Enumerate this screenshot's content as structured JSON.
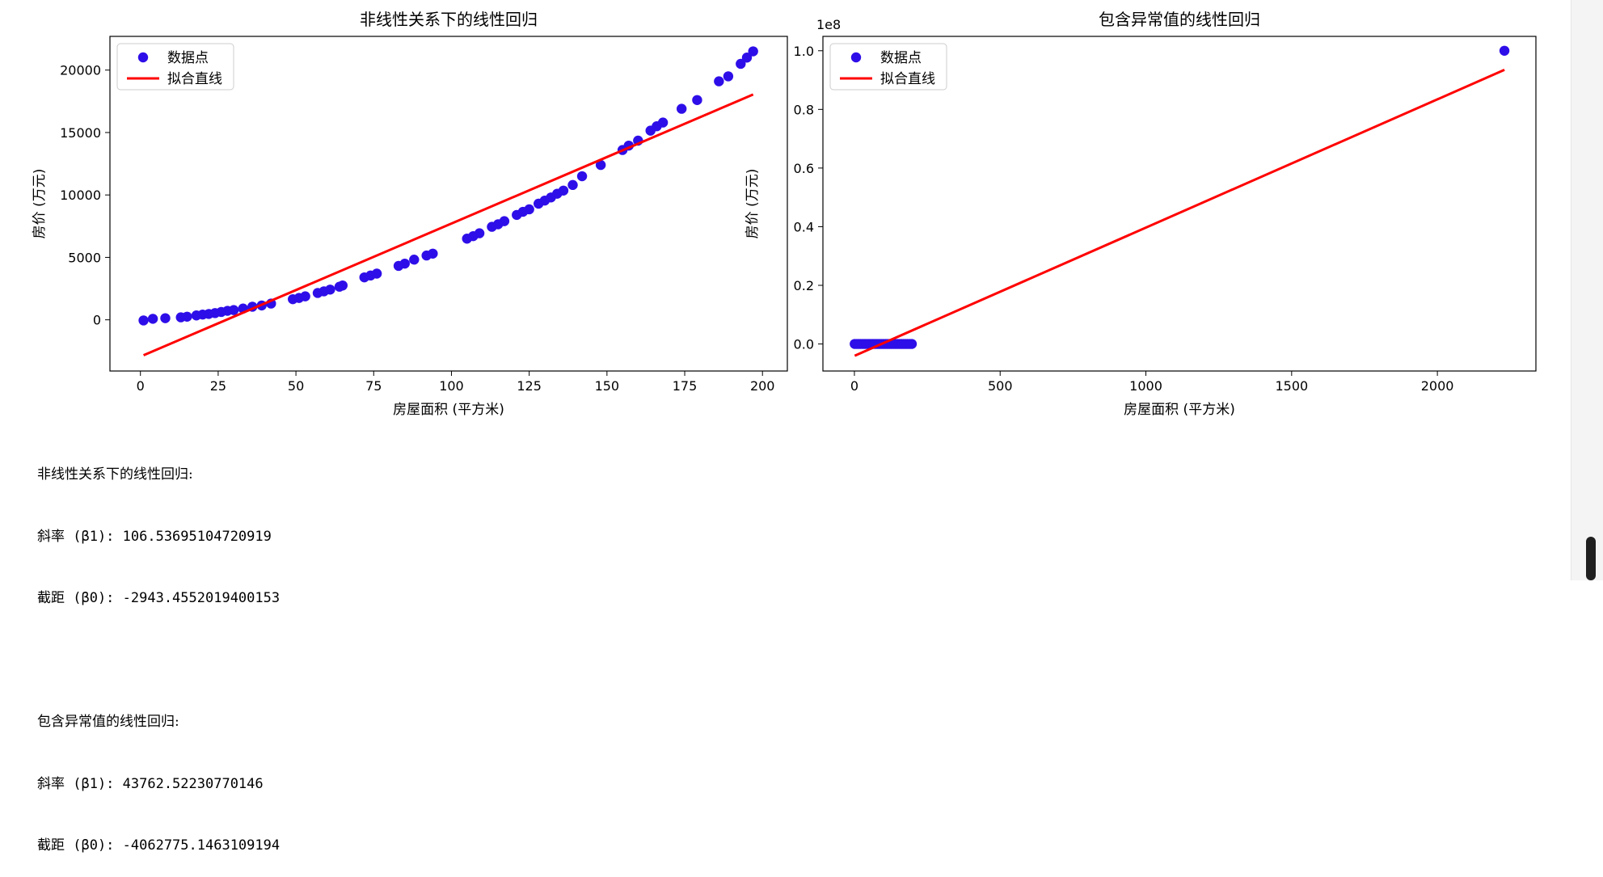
{
  "chart_data": [
    {
      "type": "scatter",
      "title": "非线性关系下的线性回归",
      "xlabel": "房屋面积 (平方米)",
      "ylabel": "房价 (万元)",
      "xlim": [
        -9.8,
        208
      ],
      "ylim": [
        -4100,
        22700
      ],
      "xticks": [
        0,
        25,
        50,
        75,
        100,
        125,
        150,
        175,
        200
      ],
      "yticks": [
        0,
        5000,
        10000,
        15000,
        20000
      ],
      "offset_text": "",
      "legend_position": "top-left",
      "series": [
        {
          "name": "数据点",
          "kind": "points",
          "color": "#2e0ee8",
          "x": [
            1,
            4,
            8,
            13,
            15,
            18,
            20,
            22,
            24,
            26,
            28,
            30,
            33,
            36,
            39,
            42,
            49,
            51,
            53,
            57,
            59,
            61,
            64,
            65,
            72,
            74,
            76,
            83,
            85,
            88,
            92,
            94,
            105,
            107,
            109,
            113,
            115,
            117,
            121,
            123,
            125,
            128,
            130,
            132,
            134,
            136,
            139,
            142,
            148,
            155,
            157,
            160,
            164,
            166,
            168,
            174,
            179,
            186,
            189,
            193,
            195,
            197
          ],
          "y": [
            -50,
            80,
            130,
            200,
            250,
            350,
            420,
            470,
            540,
            630,
            720,
            780,
            900,
            1050,
            1150,
            1300,
            1650,
            1750,
            1880,
            2150,
            2280,
            2420,
            2650,
            2750,
            3400,
            3550,
            3700,
            4320,
            4500,
            4820,
            5150,
            5300,
            6500,
            6700,
            6930,
            7450,
            7650,
            7900,
            8400,
            8650,
            8850,
            9300,
            9550,
            9800,
            10100,
            10350,
            10800,
            11500,
            12400,
            13600,
            13950,
            14350,
            15150,
            15500,
            15800,
            16900,
            17600,
            19100,
            19500,
            20500,
            21000,
            21500
          ]
        },
        {
          "name": "拟合直线",
          "kind": "line",
          "color": "#ff0000",
          "x": [
            1,
            197
          ],
          "y": [
            -2837,
            18043
          ]
        }
      ]
    },
    {
      "type": "scatter",
      "title": "包含异常值的线性回归",
      "xlabel": "房屋面积 (平方米)",
      "ylabel": "房价 (万元)",
      "xlim": [
        -108,
        2338
      ],
      "ylim": [
        -0.0922,
        1.049
      ],
      "xticks": [
        0,
        500,
        1000,
        1500,
        2000
      ],
      "yticks": [
        0.0,
        0.2,
        0.4,
        0.6,
        0.8,
        1.0
      ],
      "offset_text": "1e8",
      "legend_position": "top-left",
      "series": [
        {
          "name": "数据点",
          "kind": "points",
          "color": "#2e0ee8",
          "x": [
            1,
            8,
            15,
            22,
            29,
            36,
            43,
            50,
            57,
            64,
            71,
            78,
            85,
            92,
            99,
            106,
            113,
            120,
            127,
            134,
            141,
            148,
            155,
            162,
            169,
            176,
            183,
            190,
            197,
            2230
          ],
          "y": [
            0.0,
            0.0,
            0.0,
            0.0,
            0.0,
            0.0,
            0.0,
            0.0,
            0.0,
            0.0,
            0.0,
            0.0,
            0.0,
            0.0,
            0.0,
            0.0,
            0.0,
            0.0,
            0.0,
            0.0,
            0.0,
            0.0,
            0.0,
            0.0,
            0.0,
            0.0,
            0.0,
            0.0,
            0.0,
            1.0
          ]
        },
        {
          "name": "拟合直线",
          "kind": "line",
          "color": "#ff0000",
          "x": [
            1,
            2230
          ],
          "y": [
            -0.0402,
            0.935
          ]
        }
      ]
    }
  ],
  "output": {
    "block1": {
      "heading": "非线性关系下的线性回归:",
      "slope_line": "斜率 (β1): 106.53695104720919",
      "intercept_line": "截距 (β0): -2943.4552019400153"
    },
    "block2": {
      "heading": "包含异常值的线性回归:",
      "slope_line": "斜率 (β1): 43762.52230770146",
      "intercept_line": "截距 (β0): -4062775.1463109194"
    }
  }
}
